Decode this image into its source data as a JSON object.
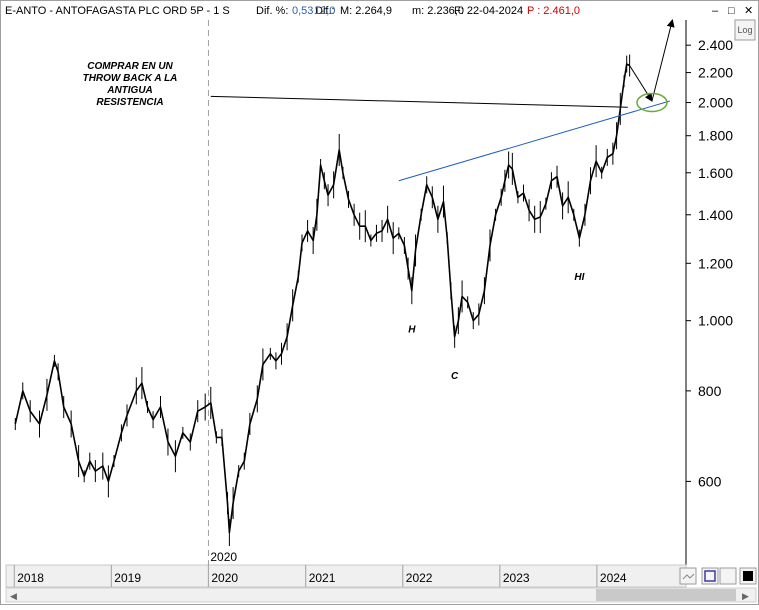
{
  "header": {
    "symbol": "E-ANTO - ANTOFAGASTA PLC ORD 5P - 1 S",
    "dif_pct_label": "Dif. %:",
    "dif_pct_value": "0,53",
    "dif_label": "Dif.:",
    "dif_value": "12,0",
    "max_label": "M: 2.264,9",
    "min_label": "m: 2.236,0",
    "date_label": "F: 22-04-2024",
    "price_label": "P : 2.461,0"
  },
  "window_controls": {
    "minimize": "–",
    "maximize": "□",
    "close": "✕"
  },
  "scale_mode_label": "Log",
  "colors": {
    "price": "#000000",
    "trendline": "#1f5fc0",
    "resistance": "#000000",
    "ellipse": "#6aaa3a",
    "axis_bg": "#f0f0f0",
    "header_red": "#d00000",
    "header_blue": "#2b5fb0"
  },
  "chart_data": {
    "type": "line",
    "title": "E-ANTO - ANTOFAGASTA PLC ORD 5P - 1 S",
    "x_axis": {
      "ticks": [
        "2018",
        "2019",
        "2020",
        "2021",
        "2022",
        "2023",
        "2024"
      ],
      "range": [
        "2017-12",
        "2024-12"
      ]
    },
    "y_axis": {
      "scale": "log",
      "ticks": [
        600,
        800,
        1000,
        1200,
        1400,
        1600,
        1800,
        2000,
        2200,
        2400
      ],
      "tick_labels": [
        "600",
        "800",
        "1.000",
        "1.200",
        "1.400",
        "1.600",
        "1.800",
        "2.000",
        "2.200",
        "2.400"
      ],
      "range": [
        460,
        2600
      ]
    },
    "grid": false,
    "series": [
      {
        "values": [
          [
            "2018-01-05",
            720
          ],
          [
            "2018-02-02",
            800
          ],
          [
            "2018-03-02",
            750
          ],
          [
            "2018-04-06",
            720
          ],
          [
            "2018-05-04",
            790
          ],
          [
            "2018-06-01",
            880
          ],
          [
            "2018-06-15",
            850
          ],
          [
            "2018-07-06",
            760
          ],
          [
            "2018-08-03",
            720
          ],
          [
            "2018-08-31",
            640
          ],
          [
            "2018-09-21",
            610
          ],
          [
            "2018-10-12",
            640
          ],
          [
            "2018-11-02",
            620
          ],
          [
            "2018-11-30",
            630
          ],
          [
            "2018-12-21",
            600
          ],
          [
            "2019-01-11",
            640
          ],
          [
            "2019-02-08",
            700
          ],
          [
            "2019-03-01",
            740
          ],
          [
            "2019-04-05",
            800
          ],
          [
            "2019-04-26",
            820
          ],
          [
            "2019-05-17",
            760
          ],
          [
            "2019-06-07",
            730
          ],
          [
            "2019-07-05",
            760
          ],
          [
            "2019-08-02",
            680
          ],
          [
            "2019-08-30",
            650
          ],
          [
            "2019-09-27",
            700
          ],
          [
            "2019-10-25",
            680
          ],
          [
            "2019-11-22",
            750
          ],
          [
            "2019-12-20",
            760
          ],
          [
            "2020-01-10",
            770
          ],
          [
            "2020-01-31",
            690
          ],
          [
            "2020-02-21",
            690
          ],
          [
            "2020-03-13",
            560
          ],
          [
            "2020-03-20",
            510
          ],
          [
            "2020-04-03",
            560
          ],
          [
            "2020-04-24",
            620
          ],
          [
            "2020-05-15",
            640
          ],
          [
            "2020-06-05",
            720
          ],
          [
            "2020-07-03",
            780
          ],
          [
            "2020-07-24",
            870
          ],
          [
            "2020-08-21",
            900
          ],
          [
            "2020-09-11",
            880
          ],
          [
            "2020-10-02",
            900
          ],
          [
            "2020-10-23",
            950
          ],
          [
            "2020-11-13",
            1050
          ],
          [
            "2020-12-04",
            1150
          ],
          [
            "2020-12-18",
            1280
          ],
          [
            "2021-01-08",
            1330
          ],
          [
            "2021-01-29",
            1290
          ],
          [
            "2021-02-12",
            1400
          ],
          [
            "2021-02-26",
            1640
          ],
          [
            "2021-03-12",
            1560
          ],
          [
            "2021-03-26",
            1490
          ],
          [
            "2021-04-16",
            1540
          ],
          [
            "2021-05-07",
            1720
          ],
          [
            "2021-05-21",
            1600
          ],
          [
            "2021-06-11",
            1470
          ],
          [
            "2021-07-02",
            1400
          ],
          [
            "2021-07-23",
            1350
          ],
          [
            "2021-08-13",
            1350
          ],
          [
            "2021-09-03",
            1290
          ],
          [
            "2021-09-24",
            1320
          ],
          [
            "2021-10-15",
            1330
          ],
          [
            "2021-11-05",
            1380
          ],
          [
            "2021-11-26",
            1300
          ],
          [
            "2021-12-17",
            1320
          ],
          [
            "2022-01-07",
            1270
          ],
          [
            "2022-01-21",
            1180
          ],
          [
            "2022-02-04",
            1100
          ],
          [
            "2022-02-18",
            1250
          ],
          [
            "2022-03-11",
            1400
          ],
          [
            "2022-04-01",
            1540
          ],
          [
            "2022-04-22",
            1480
          ],
          [
            "2022-05-13",
            1380
          ],
          [
            "2022-06-03",
            1460
          ],
          [
            "2022-06-17",
            1300
          ],
          [
            "2022-07-01",
            1100
          ],
          [
            "2022-07-15",
            950
          ],
          [
            "2022-07-29",
            1000
          ],
          [
            "2022-08-12",
            1080
          ],
          [
            "2022-09-02",
            1060
          ],
          [
            "2022-09-23",
            1000
          ],
          [
            "2022-10-14",
            1020
          ],
          [
            "2022-11-04",
            1100
          ],
          [
            "2022-11-25",
            1270
          ],
          [
            "2022-12-16",
            1400
          ],
          [
            "2023-01-06",
            1480
          ],
          [
            "2023-01-20",
            1560
          ],
          [
            "2023-02-03",
            1640
          ],
          [
            "2023-02-17",
            1620
          ],
          [
            "2023-03-10",
            1480
          ],
          [
            "2023-03-31",
            1500
          ],
          [
            "2023-04-21",
            1420
          ],
          [
            "2023-05-12",
            1380
          ],
          [
            "2023-06-02",
            1390
          ],
          [
            "2023-06-23",
            1450
          ],
          [
            "2023-07-14",
            1560
          ],
          [
            "2023-08-04",
            1580
          ],
          [
            "2023-08-25",
            1440
          ],
          [
            "2023-09-15",
            1480
          ],
          [
            "2023-10-06",
            1400
          ],
          [
            "2023-10-27",
            1300
          ],
          [
            "2023-11-17",
            1400
          ],
          [
            "2023-12-08",
            1560
          ],
          [
            "2023-12-29",
            1660
          ],
          [
            "2024-01-19",
            1600
          ],
          [
            "2024-02-09",
            1680
          ],
          [
            "2024-03-01",
            1700
          ],
          [
            "2024-03-15",
            1800
          ],
          [
            "2024-03-29",
            1960
          ],
          [
            "2024-04-12",
            2140
          ],
          [
            "2024-04-22",
            2260
          ],
          [
            "2024-05-03",
            2250
          ]
        ]
      }
    ],
    "lines": [
      {
        "kind": "trendline",
        "from": [
          "2021-12-17",
          1560
        ],
        "to": [
          "2024-10-01",
          2010
        ]
      },
      {
        "kind": "resistance",
        "from": [
          "2020-01-10",
          2040
        ],
        "to": [
          "2024-04-26",
          1970
        ]
      }
    ],
    "arrows": [
      {
        "from": [
          "2024-05-03",
          2250
        ],
        "to": [
          "2024-07-26",
          2010
        ]
      },
      {
        "from": [
          "2024-07-26",
          2010
        ],
        "to": [
          "2024-10-11",
          2600
        ]
      }
    ],
    "ellipse": {
      "center": [
        "2024-07-26",
        2000
      ]
    },
    "annotations": [
      {
        "text": "COMPRAR EN UN THROW BACK A LA ANTIGUA RESISTENCIA"
      },
      {
        "text": "H",
        "anchor": [
          "2022-02-04",
          1100
        ]
      },
      {
        "text": "C",
        "anchor": [
          "2022-07-15",
          950
        ]
      },
      {
        "text": "HI",
        "anchor": [
          "2023-10-27",
          1300
        ]
      }
    ],
    "vertical_marker": {
      "date": "2020-01-01",
      "label": "2020"
    }
  }
}
